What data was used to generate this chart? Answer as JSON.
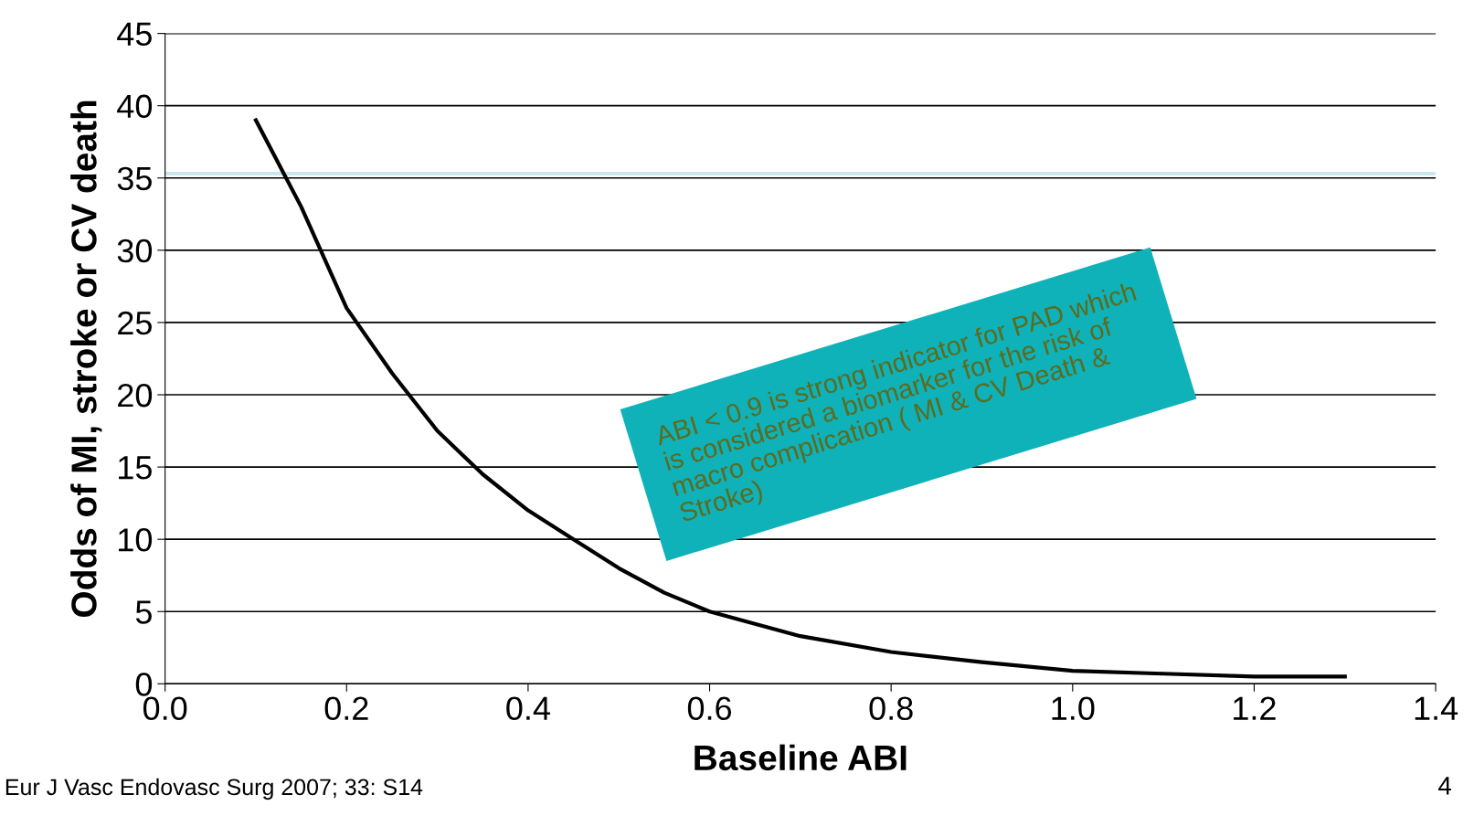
{
  "chart_data": {
    "type": "line",
    "xlabel": "Baseline ABI",
    "ylabel": "Odds of MI, stroke or CV death",
    "x": [
      0.1,
      0.15,
      0.2,
      0.25,
      0.3,
      0.35,
      0.4,
      0.45,
      0.5,
      0.55,
      0.6,
      0.7,
      0.8,
      0.9,
      1.0,
      1.1,
      1.2,
      1.3
    ],
    "series": [
      {
        "color": "#000000",
        "values": [
          39,
          33,
          26,
          21.5,
          17.5,
          14.5,
          12,
          10,
          8,
          6.3,
          5,
          3.3,
          2.2,
          1.5,
          0.9,
          0.7,
          0.5,
          0.5
        ]
      }
    ],
    "xlim": [
      0,
      1.4
    ],
    "xticks": [
      {
        "value": 0,
        "label": "0.0"
      },
      0.2,
      0.4,
      0.6,
      0.8,
      {
        "value": 1,
        "label": "1.0"
      },
      1.2,
      1.4
    ],
    "ylim": [
      0,
      45
    ],
    "yticks": [
      0,
      5,
      10,
      15,
      20,
      25,
      30,
      35,
      40,
      45
    ],
    "grid": "y",
    "marker": "none",
    "line_style": "solid",
    "ref_lines": [
      {
        "axis": "y",
        "value": 35.3,
        "color": "#c8e8ee"
      }
    ],
    "annotations": [
      "ABI < 0.9 is strong indicator for PAD which\nis considered a biomarker for the risk of\nmacro complication ( MI & CV Death &\nStroke)",
      "Eur J Vasc Endovasc Surg 2007; 33: S14",
      "4"
    ]
  }
}
